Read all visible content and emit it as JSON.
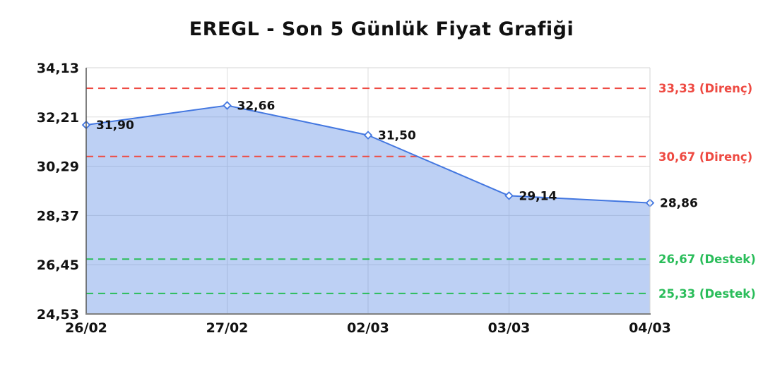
{
  "title": "EREGL - Son 5 Günlük Fiyat Grafiği",
  "chart_data": {
    "type": "area",
    "title": "EREGL - Son 5 Günlük Fiyat Grafiği",
    "xlabel": "",
    "ylabel": "",
    "categories": [
      "26/02",
      "27/02",
      "02/03",
      "03/03",
      "04/03"
    ],
    "values": [
      31.9,
      32.66,
      31.5,
      29.14,
      28.86
    ],
    "point_labels": [
      "31,90",
      "32,66",
      "31,50",
      "29,14",
      "28,86"
    ],
    "ylim": [
      24.53,
      34.13
    ],
    "yticks": [
      24.53,
      26.45,
      28.37,
      30.29,
      32.21,
      34.13
    ],
    "ytick_labels": [
      "24,53",
      "26,45",
      "28,37",
      "30,29",
      "32,21",
      "34,13"
    ],
    "grid": true,
    "legend": "none",
    "reference_lines": [
      {
        "value": 33.33,
        "label": "33,33 (Direnç)",
        "kind": "resistance"
      },
      {
        "value": 30.67,
        "label": "30,67 (Direnç)",
        "kind": "resistance"
      },
      {
        "value": 26.67,
        "label": "26,67 (Destek)",
        "kind": "support"
      },
      {
        "value": 25.33,
        "label": "25,33 (Destek)",
        "kind": "support"
      }
    ],
    "colors": {
      "line": "#4377e0",
      "marker_fill": "#ffffff",
      "area_fill_rgba": "rgba(67,119,224,0.35)",
      "resistance": "#ee4a42",
      "support": "#2abd5a",
      "grid": "#dedede",
      "tick_text": "#111111",
      "point_label_text": "#111111",
      "spine_left": "#555555",
      "spine_bottom": "#808080",
      "spine_light": "#d4d4d4"
    }
  }
}
